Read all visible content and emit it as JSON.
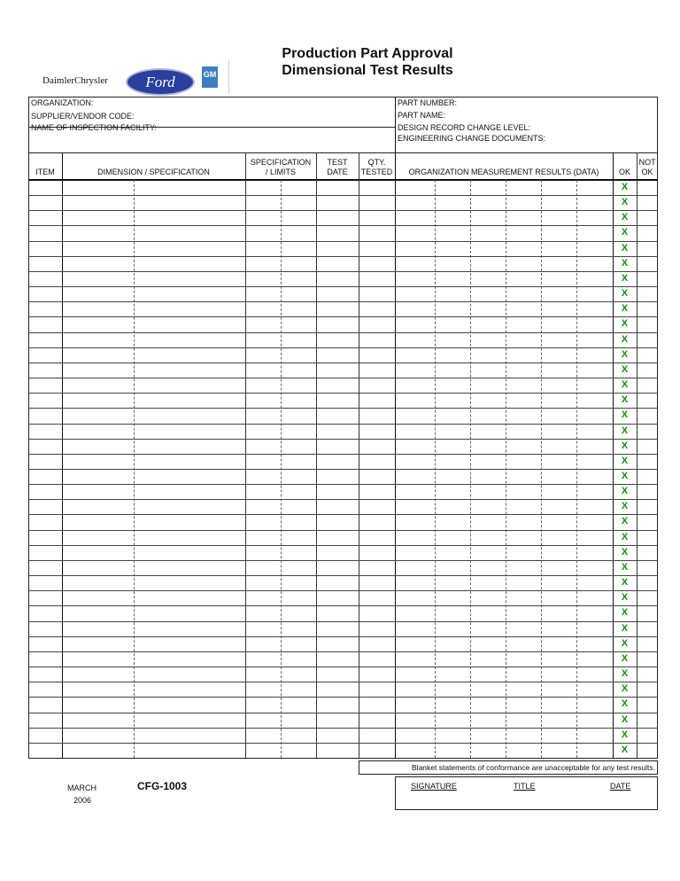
{
  "header": {
    "title_line1": "Production Part Approval",
    "title_line2": "Dimensional Test Results",
    "logos": {
      "daimler": "DaimlerChrysler",
      "ford": "Ford",
      "gm": "GM"
    }
  },
  "info": {
    "organization": "ORGANIZATION:",
    "supplier_code": "SUPPLIER/VENDOR CODE:",
    "inspection_facility": "NAME OF INSPECTION FACILITY:",
    "part_number": "PART NUMBER:",
    "part_name": "PART NAME:",
    "design_record": "DESIGN RECORD CHANGE LEVEL:",
    "engineering_docs": "ENGINEERING CHANGE DOCUMENTS:"
  },
  "table": {
    "columns": {
      "item": "ITEM",
      "dimension": "DIMENSION / SPECIFICATION",
      "spec_limits": "SPECIFICATION / LIMITS",
      "test_date": "TEST DATE",
      "qty_tested": "QTY. TESTED",
      "results": "ORGANIZATION MEASUREMENT RESULTS (DATA)",
      "ok": "OK",
      "not_ok": "NOT OK"
    },
    "ok_mark": "X",
    "row_count": 38,
    "ok_color": "#1a8a1a"
  },
  "footer": {
    "blanket_statement": "Blanket statements of conformance are unacceptable for any test results.",
    "signature": "SIGNATURE",
    "title": "TITLE",
    "date": "DATE",
    "month": "MARCH",
    "year": "2006",
    "form_code": "CFG-1003"
  }
}
